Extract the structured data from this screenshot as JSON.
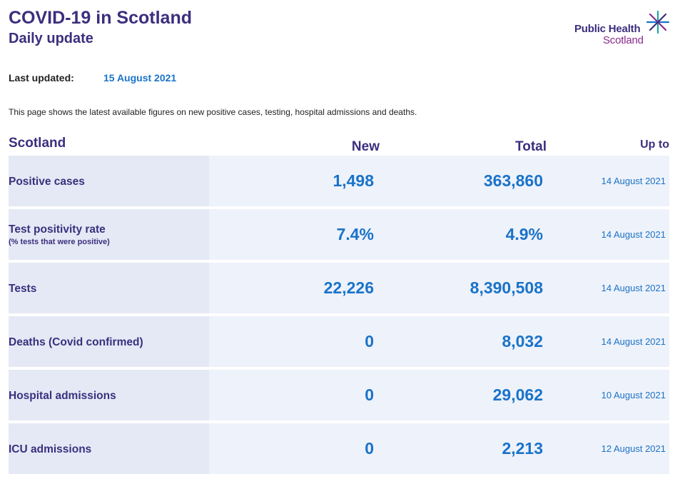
{
  "header": {
    "title": "COVID-19 in Scotland",
    "subtitle": "Daily update"
  },
  "logo": {
    "line1": "Public Health",
    "line2": "Scotland",
    "icon": "star-icon",
    "colors": {
      "purple": "#3b2f7e",
      "magenta": "#8a2a8e",
      "teal": "#1aa7a3",
      "blue": "#1a73c9"
    }
  },
  "updated": {
    "label": "Last updated:",
    "value": "15 August 2021"
  },
  "intro": "This page shows the latest available figures on new positive cases, testing, hospital admissions and deaths.",
  "table": {
    "headers": {
      "region": "Scotland",
      "new": "New",
      "total": "Total",
      "upto": "Up to"
    },
    "rows": [
      {
        "label": "Positive cases",
        "sublabel": "",
        "new": "1,498",
        "total": "363,860",
        "upto": "14 August 2021"
      },
      {
        "label": "Test positivity rate",
        "sublabel": "(% tests that were positive)",
        "new": "7.4%",
        "total": "4.9%",
        "upto": "14 August 2021"
      },
      {
        "label": "Tests",
        "sublabel": "",
        "new": "22,226",
        "total": "8,390,508",
        "upto": "14 August 2021"
      },
      {
        "label": "Deaths (Covid confirmed)",
        "sublabel": "",
        "new": "0",
        "total": "8,032",
        "upto": "14 August 2021"
      },
      {
        "label": "Hospital admissions",
        "sublabel": "",
        "new": "0",
        "total": "29,062",
        "upto": "10 August 2021"
      },
      {
        "label": "ICU admissions",
        "sublabel": "",
        "new": "0",
        "total": "2,213",
        "upto": "12 August 2021"
      }
    ]
  }
}
